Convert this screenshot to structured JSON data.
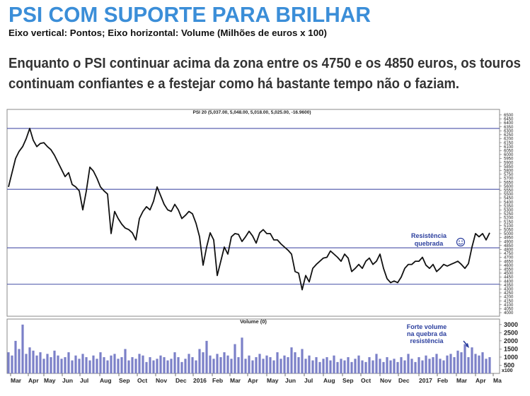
{
  "header": {
    "title": "PSI COM SUPORTE PARA BRILHAR",
    "subtitle": "Eixo vertical: Pontos; Eixo horizontal: Volume (Milhões de euros x 100)",
    "text": [
      "Enquanto o PSI continuar acima da zona entre os 4750 e os 4850 euros, os touros",
      "continuam confiantes e a festejar como há bastante tempo não o faziam."
    ]
  },
  "chart_data": [
    {
      "type": "line",
      "title": "PSI 20 (5,037.00, 5,048.00, 5,018.00, 5,025.00, -16.9600)",
      "color": "#111111",
      "x": [
        0,
        1,
        2,
        3,
        4,
        5,
        6,
        7,
        8,
        9,
        10,
        11,
        12,
        13,
        14,
        15,
        16,
        17,
        18,
        19,
        20,
        21,
        22,
        23,
        24,
        25,
        26,
        27,
        28,
        29,
        30,
        31,
        32,
        33,
        34,
        35,
        36,
        37,
        38,
        39,
        40,
        41,
        42,
        43,
        44,
        45,
        46,
        47,
        48,
        49,
        50,
        51,
        52,
        53,
        54,
        55,
        56,
        57,
        58,
        59,
        60,
        61,
        62,
        63,
        64,
        65,
        66,
        67,
        68,
        69,
        70,
        71,
        72,
        73,
        74,
        75,
        76,
        77,
        78,
        79,
        80,
        81,
        82,
        83,
        84,
        85,
        86,
        87,
        88,
        89,
        90,
        91,
        92,
        93,
        94,
        95,
        96,
        97,
        98,
        99,
        100,
        101,
        102,
        103,
        104,
        105,
        106,
        107,
        108,
        109,
        110,
        111,
        112,
        113,
        114,
        115,
        116,
        117,
        118,
        119,
        120,
        121,
        122,
        123,
        124,
        125,
        126,
        127,
        128,
        129,
        130,
        131,
        132,
        133,
        134,
        135,
        136
      ],
      "values": [
        5590,
        5770,
        5950,
        6040,
        6100,
        6200,
        6330,
        6180,
        6100,
        6140,
        6150,
        6100,
        6060,
        5990,
        5900,
        5810,
        5720,
        5770,
        5620,
        5590,
        5540,
        5300,
        5540,
        5840,
        5790,
        5700,
        5590,
        5540,
        5500,
        5000,
        5280,
        5190,
        5120,
        5070,
        5050,
        5010,
        4920,
        5190,
        5280,
        5340,
        5300,
        5410,
        5590,
        5480,
        5370,
        5300,
        5280,
        5370,
        5300,
        5190,
        5230,
        5280,
        5250,
        5130,
        4960,
        4600,
        4830,
        5010,
        4920,
        4470,
        4650,
        4830,
        4740,
        4960,
        5000,
        4990,
        4900,
        4960,
        5030,
        4970,
        4880,
        5010,
        5050,
        5000,
        5000,
        4920,
        4920,
        4870,
        4830,
        4790,
        4740,
        4520,
        4500,
        4290,
        4470,
        4390,
        4560,
        4610,
        4650,
        4690,
        4700,
        4780,
        4740,
        4700,
        4650,
        4740,
        4690,
        4520,
        4560,
        4610,
        4560,
        4650,
        4690,
        4610,
        4650,
        4740,
        4560,
        4430,
        4380,
        4400,
        4380,
        4450,
        4560,
        4610,
        4610,
        4650,
        4650,
        4700,
        4600,
        4560,
        4610,
        4520,
        4560,
        4610,
        4590,
        4610,
        4630,
        4650,
        4610,
        4560,
        4620,
        4830,
        5000,
        4960,
        5000,
        4920,
        5010
      ],
      "xlim": [
        -0.4,
        138.8
      ],
      "ylim": [
        3955,
        6570
      ],
      "yticks": [
        4000,
        4050,
        4100,
        4150,
        4200,
        4250,
        4300,
        4350,
        4400,
        4450,
        4500,
        4550,
        4600,
        4650,
        4700,
        4750,
        4800,
        4850,
        4900,
        4950,
        5000,
        5050,
        5100,
        5150,
        5200,
        5250,
        5300,
        5350,
        5400,
        5450,
        5500,
        5550,
        5600,
        5650,
        5700,
        5750,
        5800,
        5850,
        5900,
        5950,
        6000,
        6050,
        6100,
        6150,
        6200,
        6250,
        6300,
        6350,
        6400,
        6450,
        6500
      ],
      "hlines": [
        6330,
        5560,
        4820,
        4360
      ],
      "hline_color": "#4a52a8",
      "annotations": [
        {
          "lines": [
            "Resistência",
            "quebrada"
          ],
          "color": "#2b3f9e"
        }
      ]
    },
    {
      "type": "bar",
      "title": "Volume (0)",
      "color": "#7b80c8",
      "values": [
        1300,
        1100,
        2000,
        1500,
        3000,
        1200,
        1600,
        1400,
        1100,
        1300,
        900,
        1200,
        1000,
        1400,
        1100,
        900,
        1000,
        1300,
        800,
        1100,
        900,
        1200,
        1000,
        800,
        1100,
        900,
        1300,
        1000,
        800,
        1100,
        1200,
        900,
        1000,
        1500,
        800,
        1000,
        900,
        1200,
        1100,
        700,
        1000,
        800,
        900,
        1100,
        1000,
        800,
        900,
        1300,
        1000,
        700,
        900,
        1200,
        1000,
        800,
        1500,
        1300,
        2000,
        1100,
        900,
        1200,
        1000,
        1300,
        1100,
        900,
        1800,
        1000,
        2200,
        900,
        1100,
        800,
        1000,
        1200,
        900,
        1100,
        1000,
        800,
        1300,
        900,
        1100,
        1000,
        1600,
        1300,
        1000,
        1500,
        900,
        1100,
        800,
        1000,
        700,
        900,
        1000,
        800,
        1100,
        700,
        900,
        800,
        1000,
        700,
        900,
        1100,
        800,
        700,
        1000,
        800,
        1200,
        900,
        700,
        1000,
        800,
        900,
        700,
        1000,
        800,
        1200,
        900,
        700,
        1000,
        800,
        1100,
        900,
        1000,
        1200,
        900,
        800,
        1100,
        1200,
        1000,
        1400,
        1300,
        1800,
        1000,
        1600,
        1200,
        1100,
        1300,
        900,
        1000
      ],
      "ylim": [
        0,
        3340
      ],
      "yticks": [
        500,
        1000,
        1500,
        2000,
        2500,
        3000
      ],
      "y_unit": "x100",
      "xticks": [
        {
          "value": 0.6,
          "label": "Mar"
        },
        {
          "value": 5.6,
          "label": "Apr"
        },
        {
          "value": 10,
          "label": "May"
        },
        {
          "value": 15.2,
          "label": "Jun"
        },
        {
          "value": 20.2,
          "label": "Jul"
        },
        {
          "value": 25.8,
          "label": "Aug"
        },
        {
          "value": 31.2,
          "label": "Sep"
        },
        {
          "value": 36.4,
          "label": "Oct"
        },
        {
          "value": 41.6,
          "label": "Nov"
        },
        {
          "value": 47.2,
          "label": "Dec"
        },
        {
          "value": 52.2,
          "label": "2016"
        },
        {
          "value": 57.6,
          "label": "Feb"
        },
        {
          "value": 62.6,
          "label": "Mar"
        },
        {
          "value": 67.6,
          "label": "Apr"
        },
        {
          "value": 73,
          "label": "May"
        },
        {
          "value": 78.2,
          "label": "Jun"
        },
        {
          "value": 83.6,
          "label": "Jul"
        },
        {
          "value": 89,
          "label": "Aug"
        },
        {
          "value": 94.4,
          "label": "Sep"
        },
        {
          "value": 99.6,
          "label": "Oct"
        },
        {
          "value": 105,
          "label": "Nov"
        },
        {
          "value": 110.2,
          "label": "Dec"
        },
        {
          "value": 116,
          "label": "2017"
        },
        {
          "value": 121.2,
          "label": "Feb"
        },
        {
          "value": 126.6,
          "label": "Mar"
        },
        {
          "value": 132,
          "label": "Apr"
        },
        {
          "value": 137,
          "label": "Ma"
        }
      ],
      "annotations": [
        {
          "lines": [
            "Forte volume",
            "na quebra da",
            "resistência"
          ],
          "color": "#2b3f9e"
        }
      ]
    }
  ]
}
